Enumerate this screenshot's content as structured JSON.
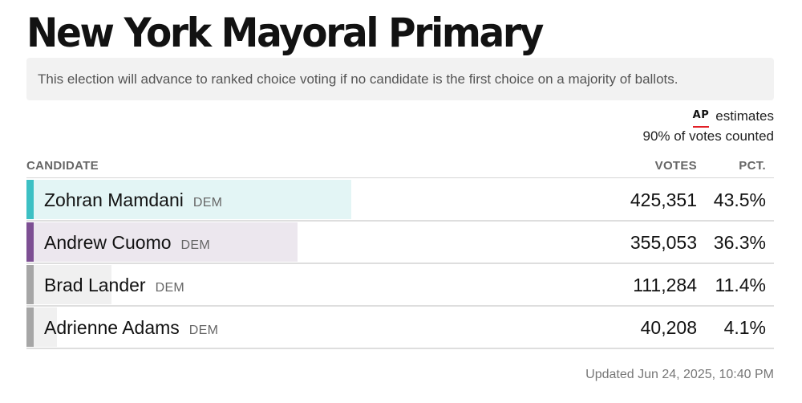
{
  "header": {
    "title": "New York Mayoral Primary"
  },
  "notice": {
    "text": "This election will advance to ranked choice voting if no candidate is the first choice on a majority of ballots."
  },
  "estimates": {
    "logo_text": "AP",
    "label": "estimates",
    "reported": "90% of votes counted"
  },
  "table": {
    "headers": {
      "candidate": "CANDIDATE",
      "votes": "VOTES",
      "pct": "PCT."
    },
    "rows": [
      {
        "name": "Zohran Mamdani",
        "party": "DEM",
        "votes": "425,351",
        "pct": "43.5%",
        "share": 43.5,
        "color": "#3cc0c4",
        "fill": "#e3f5f5"
      },
      {
        "name": "Andrew Cuomo",
        "party": "DEM",
        "votes": "355,053",
        "pct": "36.3%",
        "share": 36.3,
        "color": "#7d4f93",
        "fill": "#ece7ee"
      },
      {
        "name": "Brad Lander",
        "party": "DEM",
        "votes": "111,284",
        "pct": "11.4%",
        "share": 11.4,
        "color": "#a6a6a6",
        "fill": "#f0f0f0"
      },
      {
        "name": "Adrienne Adams",
        "party": "DEM",
        "votes": "40,208",
        "pct": "4.1%",
        "share": 4.1,
        "color": "#a6a6a6",
        "fill": "#f0f0f0"
      }
    ]
  },
  "footer": {
    "updated": "Updated Jun 24, 2025, 10:40 PM"
  }
}
